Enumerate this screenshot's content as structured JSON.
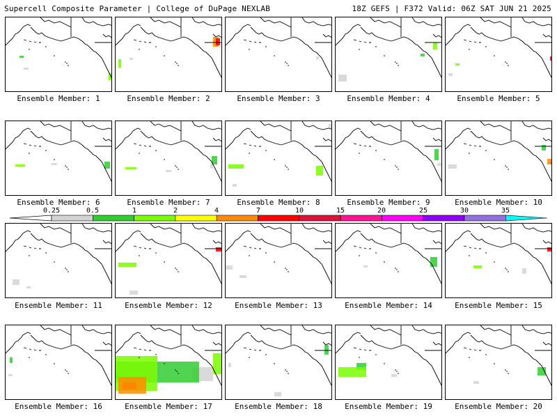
{
  "header": {
    "left": "Supercell Composite Parameter | College of DuPage NEXLAB",
    "right": "18Z GEFS | F372 Valid: 06Z SAT JUN 21 2025"
  },
  "colorbar": {
    "labels": [
      "0.25",
      "0.5",
      "1",
      "2",
      "4",
      "7",
      "10",
      "15",
      "20",
      "25",
      "30",
      "35"
    ],
    "colors": [
      "#d3d3d3",
      "#32cd32",
      "#7cfc00",
      "#ffff00",
      "#ff8c00",
      "#ff0000",
      "#dc143c",
      "#ff1493",
      "#ff00ff",
      "#8b00ff",
      "#9370db",
      "#00ffff"
    ]
  },
  "members": [
    {
      "label": "Ensemble Member: 1"
    },
    {
      "label": "Ensemble Member: 2"
    },
    {
      "label": "Ensemble Member: 3"
    },
    {
      "label": "Ensemble Member: 4"
    },
    {
      "label": "Ensemble Member: 5"
    },
    {
      "label": "Ensemble Member: 6"
    },
    {
      "label": "Ensemble Member: 7"
    },
    {
      "label": "Ensemble Member: 8"
    },
    {
      "label": "Ensemble Member: 9"
    },
    {
      "label": "Ensemble Member: 10"
    },
    {
      "label": "Ensemble Member: 11"
    },
    {
      "label": "Ensemble Member: 12"
    },
    {
      "label": "Ensemble Member: 13"
    },
    {
      "label": "Ensemble Member: 14"
    },
    {
      "label": "Ensemble Member: 15"
    },
    {
      "label": "Ensemble Member: 16"
    },
    {
      "label": "Ensemble Member: 17"
    },
    {
      "label": "Ensemble Member: 18"
    },
    {
      "label": "Ensemble Member: 19"
    },
    {
      "label": "Ensemble Member: 20"
    }
  ]
}
